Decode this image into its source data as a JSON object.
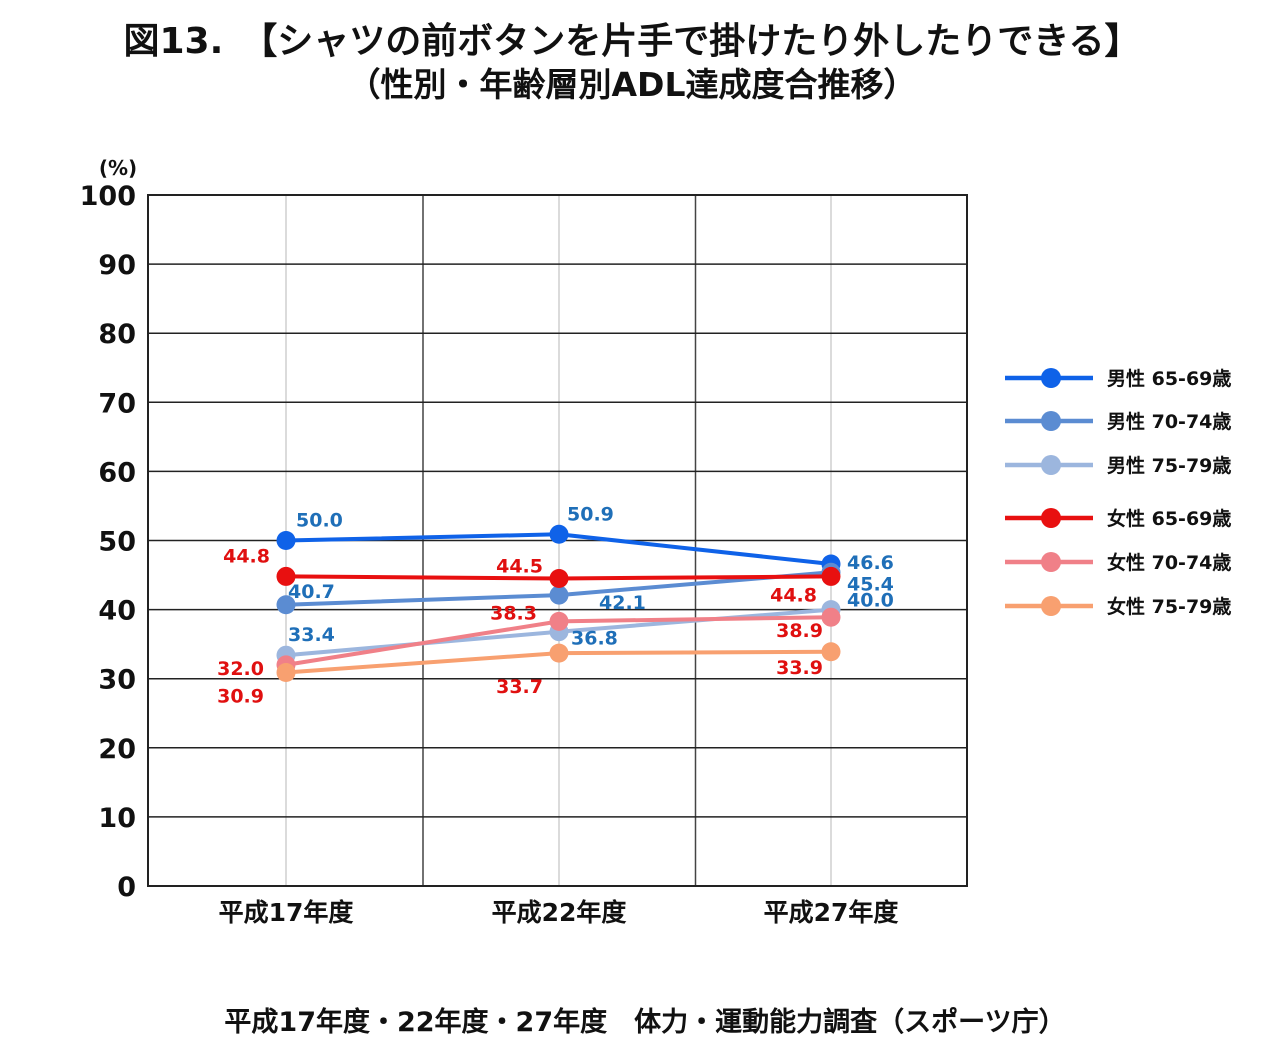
{
  "title": {
    "line1": "図13.　【シャツの前ボタンを片手で掛けたり外したりできる】",
    "line2": "（性別・年齢層別ADL達成度合推移）"
  },
  "source": "平成17年度・22年度・27年度　体力・運動能力調査（スポーツ庁）",
  "chart_data": {
    "type": "line",
    "title": "【シャツの前ボタンを片手で掛けたり外したりできる】（性別・年齢層別ADL達成度合推移）",
    "ylabel": "(%)",
    "xlabel": "",
    "ylim": [
      0,
      100
    ],
    "yticks": [
      0,
      10,
      20,
      30,
      40,
      50,
      60,
      70,
      80,
      90,
      100
    ],
    "categories": [
      "平成17年度",
      "平成22年度",
      "平成27年度"
    ],
    "grid": true,
    "legend_position": "right",
    "series": [
      {
        "name": "男性 65-69歳",
        "values": [
          50.0,
          50.9,
          46.6
        ],
        "color": "#0F62E8",
        "label_color": "#1F6FB8",
        "labels": [
          "50.0",
          "50.9",
          "46.6"
        ]
      },
      {
        "name": "男性 70-74歳",
        "values": [
          40.7,
          42.1,
          45.4
        ],
        "color": "#5B8CD2",
        "label_color": "#1F6FB8",
        "labels": [
          "40.7",
          "42.1",
          "45.4"
        ]
      },
      {
        "name": "男性 75-79歳",
        "values": [
          33.4,
          36.8,
          40.0
        ],
        "color": "#9CB6DE",
        "label_color": "#1F6FB8",
        "labels": [
          "33.4",
          "36.8",
          "40.0"
        ]
      },
      {
        "name": "女性 65-69歳",
        "values": [
          44.8,
          44.5,
          44.8
        ],
        "color": "#E81010",
        "label_color": "#E01010",
        "labels": [
          "44.8",
          "44.5",
          "44.8"
        ]
      },
      {
        "name": "女性 70-74歳",
        "values": [
          32.0,
          38.3,
          38.9
        ],
        "color": "#F08088",
        "label_color": "#E01010",
        "labels": [
          "32.0",
          "38.3",
          "38.9"
        ]
      },
      {
        "name": "女性 75-79歳",
        "values": [
          30.9,
          33.7,
          33.9
        ],
        "color": "#F8A070",
        "label_color": "#E01010",
        "labels": [
          "30.9",
          "33.7",
          "33.9"
        ]
      }
    ]
  }
}
